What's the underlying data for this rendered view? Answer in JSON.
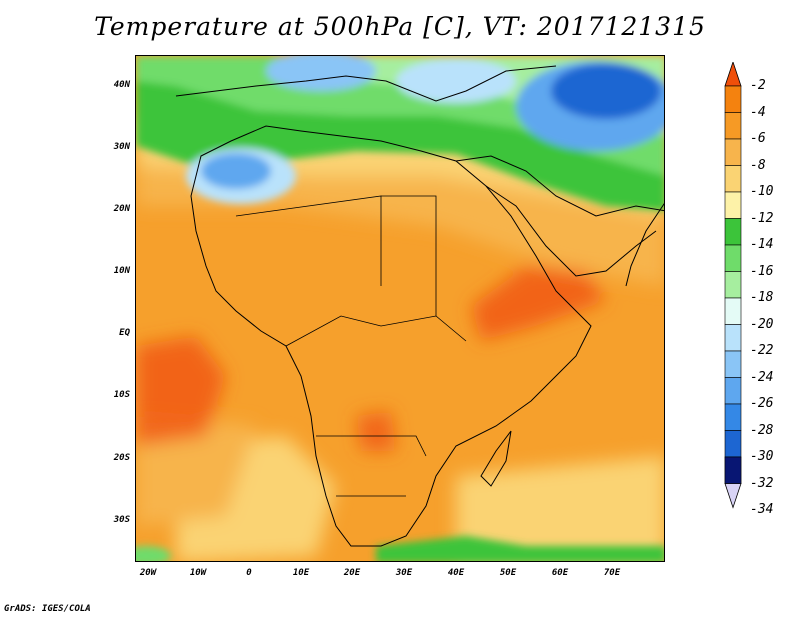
{
  "title": "Temperature at 500hPa [C], VT: 2017121315",
  "footer": "GrADS: IGES/COLA",
  "map": {
    "lat_labels": [
      "40N",
      "30N",
      "20N",
      "10N",
      "EQ",
      "10S",
      "20S",
      "30S"
    ],
    "lon_labels": [
      "20W",
      "10W",
      "0",
      "10E",
      "20E",
      "30E",
      "40E",
      "50E",
      "60E",
      "70E"
    ]
  },
  "colorbar": {
    "labels": [
      "-2",
      "-4",
      "-6",
      "-8",
      "-10",
      "-12",
      "-14",
      "-16",
      "-18",
      "-20",
      "-22",
      "-24",
      "-26",
      "-28",
      "-30",
      "-32",
      "-34"
    ],
    "colors": [
      "#f04f0a",
      "#f4820f",
      "#f69a25",
      "#f7b44c",
      "#fad373",
      "#fdf2a8",
      "#3cc43a",
      "#6fdc6a",
      "#a6ee9f",
      "#e4fbf6",
      "#b9e2fb",
      "#8ac5f6",
      "#5ea7ef",
      "#3488e6",
      "#1d66d2",
      "#0e3fab",
      "#081673"
    ]
  }
}
